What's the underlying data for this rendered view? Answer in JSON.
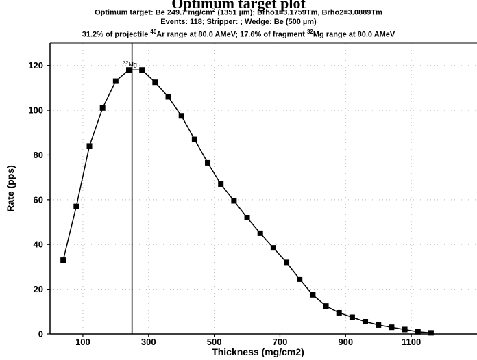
{
  "title": "Optimum target plot",
  "subtitle": {
    "line1": {
      "a": "Optimum target: Be 249.7 mg/cm",
      "a_sup": "2",
      "b": " (1351 µm);  Brho1=3.1759Tm, Brho2=3.0889Tm"
    },
    "line2": "Events: 118;  Stripper:  ;  Wedge: Be (500 µm)",
    "line3": {
      "a": "31.2% of projectile ",
      "a_sup": "40",
      "b": "Ar range at 80.0 AMeV; 17.6% of fragment ",
      "b_sup": "32",
      "c": "Mg range at 80.0 AMeV"
    }
  },
  "colors": {
    "line": "#000000",
    "marker": "#000000",
    "grid": "#bbbbbb"
  },
  "chart_data": {
    "type": "line",
    "xlabel": "Thickness (mg/cm2)",
    "ylabel": "Rate (pps)",
    "xlim": [
      0,
      1300
    ],
    "ylim": [
      0,
      130
    ],
    "xticks": [
      100,
      300,
      500,
      700,
      900,
      1100
    ],
    "yticks": [
      0,
      20,
      40,
      60,
      80,
      100,
      120
    ],
    "grid": true,
    "marker": "square",
    "optimum_x": 249.7,
    "annotation": {
      "sup": "32",
      "text": "Mg",
      "x": 250,
      "y": 119
    },
    "x": [
      40,
      80,
      120,
      160,
      200,
      240,
      280,
      320,
      360,
      400,
      440,
      480,
      520,
      560,
      600,
      640,
      680,
      720,
      760,
      800,
      840,
      880,
      920,
      960,
      1000,
      1040,
      1080,
      1120,
      1160
    ],
    "y": [
      33,
      57,
      84,
      101,
      113,
      118,
      118,
      112.5,
      106,
      97.5,
      87,
      76.5,
      67,
      59.5,
      52,
      45,
      38.5,
      32,
      24.5,
      17.5,
      12.5,
      9.5,
      7.5,
      5.5,
      4,
      3,
      2,
      1,
      0.5
    ]
  }
}
